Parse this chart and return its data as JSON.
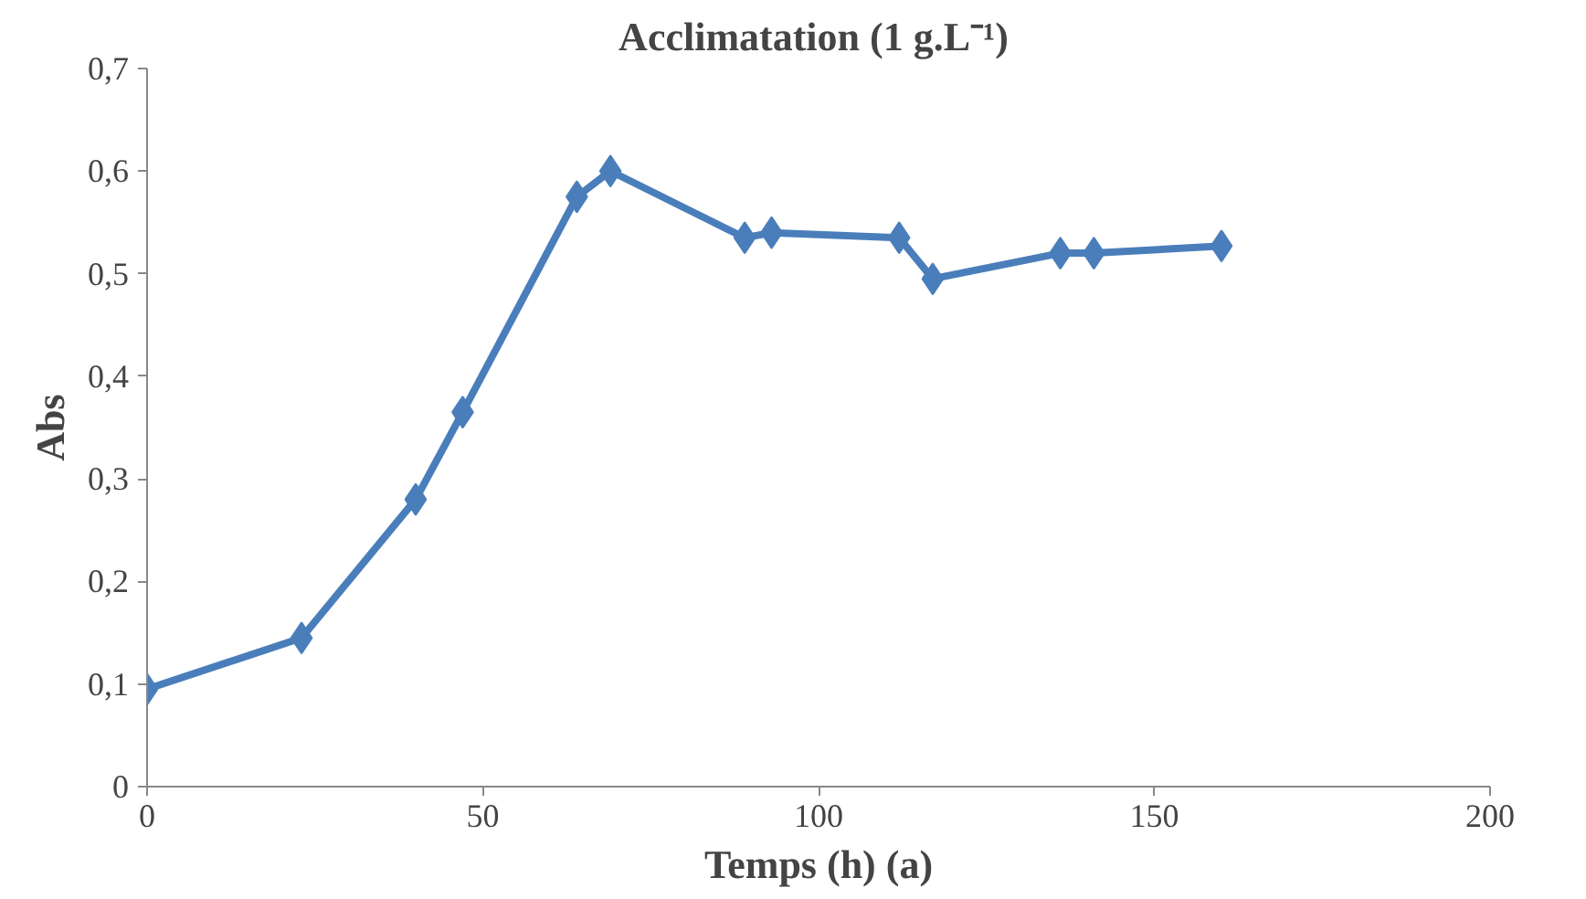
{
  "chart_data": {
    "type": "line",
    "title": "Acclimatation  (1 g.L⁻¹)",
    "xlabel": "Temps (h) (a)",
    "ylabel": "Abs",
    "x": [
      0,
      23,
      40,
      47,
      64,
      69,
      89,
      93,
      112,
      117,
      136,
      141,
      160
    ],
    "series": [
      {
        "color": "#4a7ebb",
        "values": [
          0.095,
          0.145,
          0.28,
          0.365,
          0.575,
          0.6,
          0.535,
          0.54,
          0.535,
          0.495,
          0.52,
          0.52,
          0.527
        ]
      }
    ],
    "xlim": [
      0,
      200
    ],
    "xticks": [
      0,
      50,
      100,
      150,
      200
    ],
    "ylim": [
      0,
      0.7
    ],
    "yticks": [
      0,
      {
        "value": 0.1,
        "label": "0,1"
      },
      {
        "value": 0.2,
        "label": "0,2"
      },
      {
        "value": 0.3,
        "label": "0,3"
      },
      {
        "value": 0.4,
        "label": "0,4"
      },
      {
        "value": 0.5,
        "label": "0,5"
      },
      {
        "value": 0.6,
        "label": "0,6"
      },
      {
        "value": 0.7,
        "label": "0,7"
      }
    ],
    "grid": false,
    "marker": "diamond",
    "line_style": "solid"
  }
}
